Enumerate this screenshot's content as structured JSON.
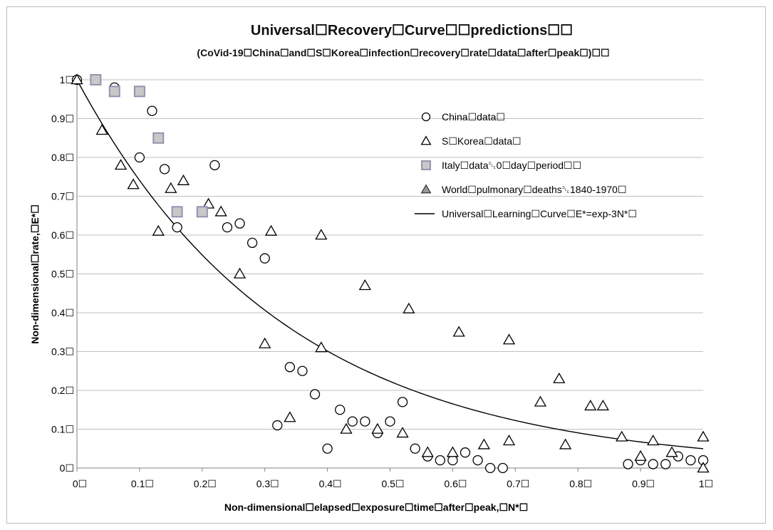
{
  "chart_data": {
    "type": "scatter",
    "title": "Universal☐Recovery☐Curve☐☐predictions☐☐",
    "subtitle": "(CoVid-19☐China☐and☐S☐Korea☐infection☐recovery☐rate☐data☐after☐peak☐)☐☐",
    "xlabel": "Non-dimensional☐elapsed☐exposure☐time☐after☐peak,☐N*☐",
    "ylabel": "Non-dimensional☐rate,☐E*☐",
    "xlim": [
      0,
      1
    ],
    "ylim": [
      0,
      1
    ],
    "x_ticks": [
      "0☐",
      "0.1☐",
      "0.2☐",
      "0.3☐",
      "0.4☐",
      "0.5☐",
      "0.6☐",
      "0.7☐",
      "0.8☐",
      "0.9☐",
      "1☐"
    ],
    "y_ticks": [
      "0☐",
      "0.1☐",
      "0.2☐",
      "0.3☐",
      "0.4☐",
      "0.5☐",
      "0.6☐",
      "0.7☐",
      "0.8☐",
      "0.9☐",
      "1☐"
    ],
    "grid": "horizontal",
    "legend_position": "top-right",
    "series": [
      {
        "name": "China☐data☐",
        "marker": "circle",
        "color": "#000000",
        "points": [
          [
            0.0,
            1.0
          ],
          [
            0.06,
            0.98
          ],
          [
            0.12,
            0.92
          ],
          [
            0.1,
            0.8
          ],
          [
            0.14,
            0.77
          ],
          [
            0.22,
            0.78
          ],
          [
            0.16,
            0.62
          ],
          [
            0.24,
            0.62
          ],
          [
            0.26,
            0.63
          ],
          [
            0.28,
            0.58
          ],
          [
            0.3,
            0.54
          ],
          [
            0.34,
            0.26
          ],
          [
            0.36,
            0.25
          ],
          [
            0.38,
            0.19
          ],
          [
            0.32,
            0.11
          ],
          [
            0.42,
            0.15
          ],
          [
            0.44,
            0.12
          ],
          [
            0.46,
            0.12
          ],
          [
            0.48,
            0.09
          ],
          [
            0.5,
            0.12
          ],
          [
            0.52,
            0.17
          ],
          [
            0.4,
            0.05
          ],
          [
            0.54,
            0.05
          ],
          [
            0.56,
            0.03
          ],
          [
            0.58,
            0.02
          ],
          [
            0.6,
            0.02
          ],
          [
            0.62,
            0.04
          ],
          [
            0.64,
            0.02
          ],
          [
            0.66,
            0.0
          ],
          [
            0.68,
            0.0
          ],
          [
            0.88,
            0.01
          ],
          [
            0.9,
            0.02
          ],
          [
            0.92,
            0.01
          ],
          [
            0.94,
            0.01
          ],
          [
            0.96,
            0.03
          ],
          [
            0.98,
            0.02
          ],
          [
            1.0,
            0.02
          ]
        ]
      },
      {
        "name": "S☐Korea☐data☐",
        "marker": "triangle",
        "color": "#000000",
        "points": [
          [
            0.0,
            1.0
          ],
          [
            0.04,
            0.87
          ],
          [
            0.07,
            0.78
          ],
          [
            0.09,
            0.73
          ],
          [
            0.13,
            0.61
          ],
          [
            0.15,
            0.72
          ],
          [
            0.17,
            0.74
          ],
          [
            0.21,
            0.68
          ],
          [
            0.23,
            0.66
          ],
          [
            0.26,
            0.5
          ],
          [
            0.3,
            0.32
          ],
          [
            0.31,
            0.61
          ],
          [
            0.34,
            0.13
          ],
          [
            0.39,
            0.6
          ],
          [
            0.39,
            0.31
          ],
          [
            0.43,
            0.1
          ],
          [
            0.46,
            0.47
          ],
          [
            0.48,
            0.1
          ],
          [
            0.52,
            0.09
          ],
          [
            0.53,
            0.41
          ],
          [
            0.56,
            0.04
          ],
          [
            0.6,
            0.04
          ],
          [
            0.61,
            0.35
          ],
          [
            0.65,
            0.06
          ],
          [
            0.69,
            0.33
          ],
          [
            0.69,
            0.07
          ],
          [
            0.74,
            0.17
          ],
          [
            0.77,
            0.23
          ],
          [
            0.78,
            0.06
          ],
          [
            0.82,
            0.16
          ],
          [
            0.84,
            0.16
          ],
          [
            0.87,
            0.08
          ],
          [
            0.9,
            0.03
          ],
          [
            0.92,
            0.07
          ],
          [
            0.95,
            0.04
          ],
          [
            1.0,
            0.08
          ],
          [
            1.0,
            0.0
          ]
        ]
      },
      {
        "name": "Italy☐data␐0☐day☐period☐☐",
        "marker": "square",
        "color": "#9b8fb0",
        "points": [
          [
            0.03,
            1.0
          ],
          [
            0.06,
            0.97
          ],
          [
            0.1,
            0.97
          ],
          [
            0.13,
            0.85
          ],
          [
            0.16,
            0.66
          ],
          [
            0.2,
            0.66
          ]
        ]
      },
      {
        "name": "World☐pulmonary☐deaths␐1840-1970☐",
        "marker": "triangle-filled",
        "color": "#9a9a9a",
        "points": []
      },
      {
        "name": "Universal☐Learning☐Curve☐E*=exp-3N*☐",
        "marker": "line",
        "color": "#000000",
        "function": "exp(-3x)"
      }
    ]
  }
}
